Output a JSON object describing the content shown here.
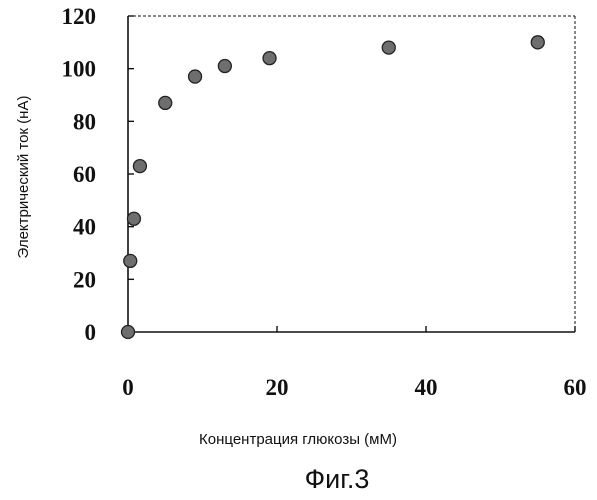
{
  "chart_data": {
    "type": "scatter",
    "xlabel": "Концентрация глюкозы (мМ)",
    "ylabel": "Электрический ток (нА)",
    "caption": "Фиг.3",
    "xlim": [
      0,
      60
    ],
    "ylim": [
      0,
      120
    ],
    "xticks": [
      "0",
      "20",
      "40",
      "60"
    ],
    "yticks": [
      "0",
      "20",
      "40",
      "60",
      "80",
      "100",
      "120"
    ],
    "grid": false,
    "x": [
      0,
      0.3,
      0.8,
      1.6,
      5,
      9,
      13,
      19,
      35,
      55
    ],
    "y": [
      0,
      27,
      43,
      63,
      87,
      97,
      101,
      104,
      108,
      110
    ]
  }
}
